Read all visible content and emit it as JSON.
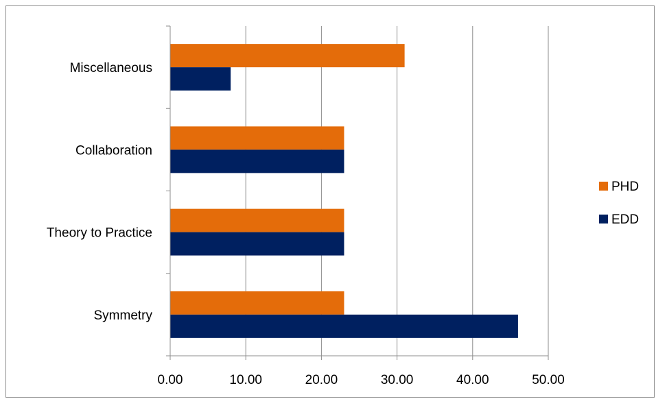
{
  "chart_data": {
    "type": "bar",
    "orientation": "horizontal",
    "categories": [
      "Symmetry",
      "Theory to Practice",
      "Collaboration",
      "Miscellaneous"
    ],
    "series": [
      {
        "name": "PHD",
        "values": [
          23,
          23,
          23,
          31
        ],
        "color": "#E46C0A"
      },
      {
        "name": "EDD",
        "values": [
          46,
          23,
          23,
          8
        ],
        "color": "#002060"
      }
    ],
    "xlim": [
      0,
      50
    ],
    "xticks": [
      "0.00",
      "10.00",
      "20.00",
      "30.00",
      "40.00",
      "50.00"
    ],
    "grid": true,
    "legend_position": "right",
    "title": "",
    "xlabel": "",
    "ylabel": ""
  }
}
